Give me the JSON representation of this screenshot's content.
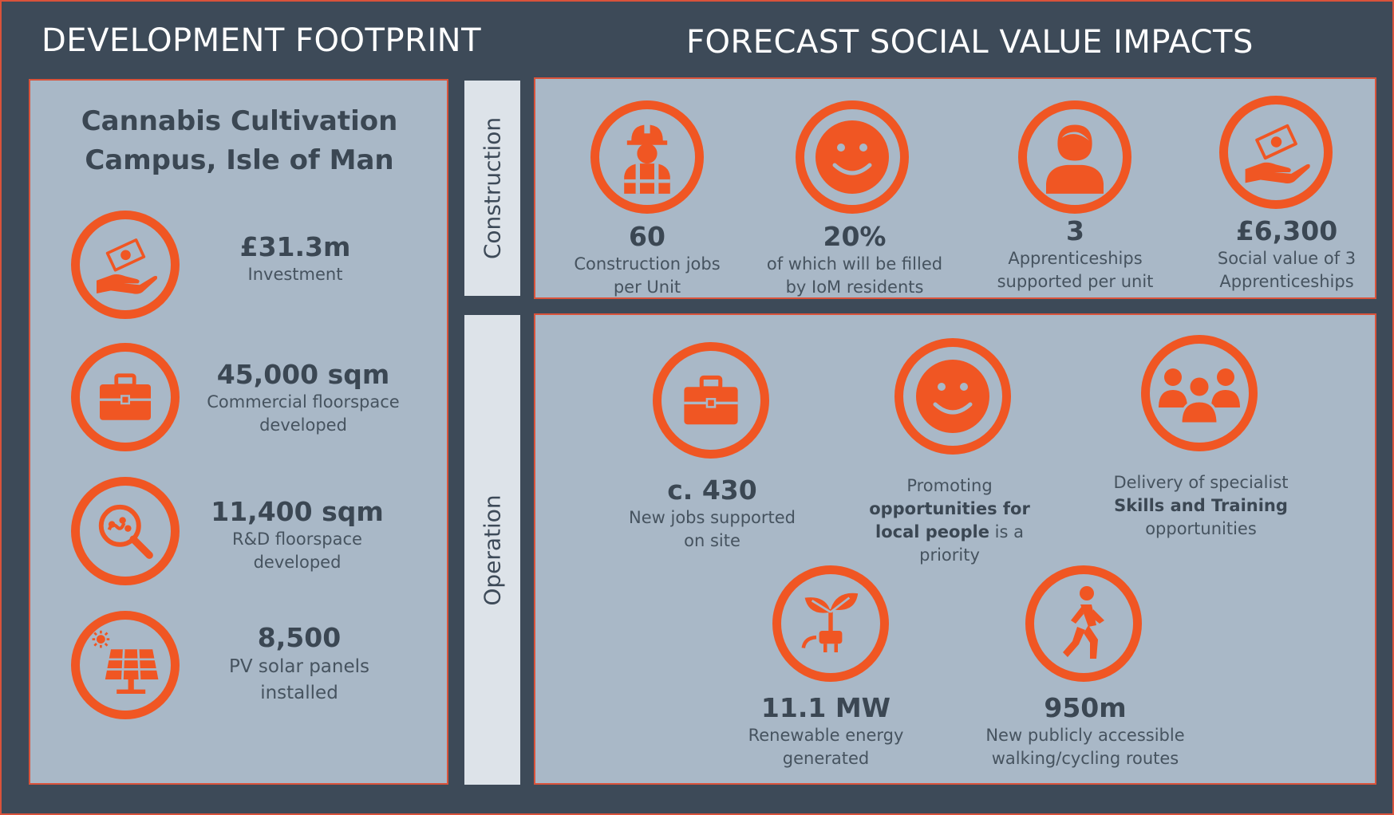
{
  "headers": {
    "left": "DEVELOPMENT FOOTPRINT",
    "right": "FORECAST SOCIAL VALUE IMPACTS"
  },
  "footprint": {
    "title": "Cannabis Cultivation Campus, Isle of Man",
    "items": [
      {
        "value": "£31.3m",
        "label": "Investment",
        "icon": "money-hand-icon"
      },
      {
        "value": "45,000 sqm",
        "label": "Commercial floorspace developed",
        "icon": "briefcase-icon"
      },
      {
        "value": "11,400 sqm",
        "label": "R&D floorspace developed",
        "icon": "magnifier-icon"
      },
      {
        "value": "8,500",
        "label": "PV solar panels installed",
        "icon": "solar-panel-icon"
      }
    ]
  },
  "sections": {
    "construction": "Construction",
    "operation": "Operation"
  },
  "construction": [
    {
      "value": "60",
      "label": "Construction jobs per Unit",
      "icon": "worker-icon"
    },
    {
      "value": "20%",
      "label": "of which will be filled by IoM residents",
      "icon": "smiley-icon"
    },
    {
      "value": "3",
      "label": "Apprenticeships supported per unit",
      "icon": "person-icon"
    },
    {
      "value": "£6,300",
      "label": "Social value of 3 Apprenticeships",
      "icon": "money-hand-icon"
    }
  ],
  "operation": {
    "jobs": {
      "value": "c. 430",
      "label": "New jobs supported on site"
    },
    "promoting": {
      "pre": "Promoting",
      "bold": "opportunities for local people",
      "post": "is a priority"
    },
    "skills": {
      "pre": "Delivery of specialist",
      "bold": "Skills and Training",
      "post": "opportunities"
    },
    "energy": {
      "value": "11.1 MW",
      "label": "Renewable energy generated"
    },
    "routes": {
      "value": "950m",
      "label": "New publicly accessible walking/cycling routes"
    }
  },
  "colors": {
    "accent": "#f05623",
    "background": "#3d4a58",
    "panel": "#a9b8c7",
    "strip": "#dde3e9",
    "border": "#d9533b"
  }
}
